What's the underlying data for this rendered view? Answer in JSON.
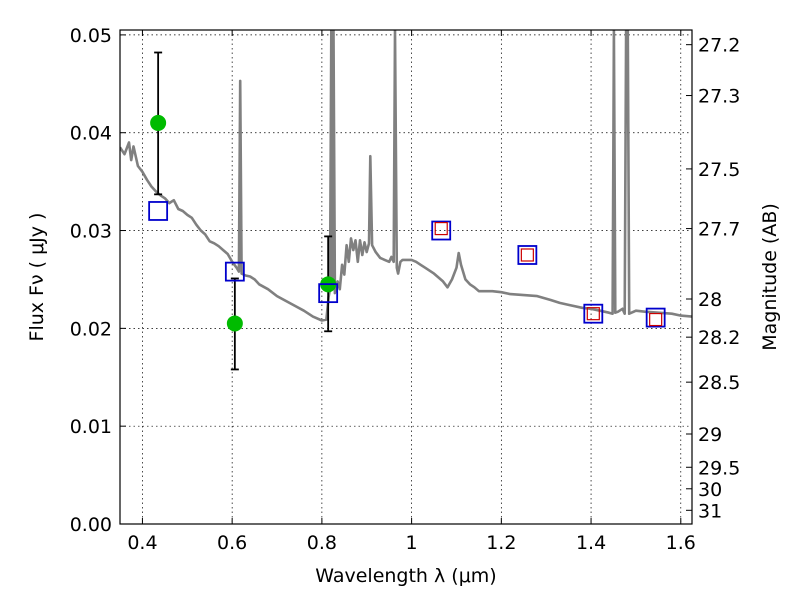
{
  "chart_data": {
    "type": "scatter",
    "xlabel": "Wavelength  λ (μm)",
    "ylabel": "Flux  Fν  ( μJy )",
    "y2label": "Magnitude (AB)",
    "xlim": [
      0.35,
      1.625
    ],
    "ylim": [
      0.0,
      0.0505
    ],
    "x_ticks": [
      0.4,
      0.6,
      0.8,
      1.0,
      1.2,
      1.4,
      1.6
    ],
    "x_tick_labels": [
      "0.4",
      "0.6",
      "0.8",
      "1",
      "1.2",
      "1.4",
      "1.6"
    ],
    "y_ticks": [
      0.0,
      0.01,
      0.02,
      0.03,
      0.04,
      0.05
    ],
    "y_tick_labels": [
      "0.00",
      "0.01",
      "0.02",
      "0.03",
      "0.04",
      "0.05"
    ],
    "y2_ticks": [
      {
        "flux": 0.049,
        "label": "27.2"
      },
      {
        "flux": 0.0438,
        "label": "27.3"
      },
      {
        "flux": 0.0363,
        "label": "27.5"
      },
      {
        "flux": 0.0302,
        "label": "27.7"
      },
      {
        "flux": 0.023,
        "label": "28"
      },
      {
        "flux": 0.0191,
        "label": "28.2"
      },
      {
        "flux": 0.0145,
        "label": "28.5"
      },
      {
        "flux": 0.0092,
        "label": "29"
      },
      {
        "flux": 0.0058,
        "label": "29.5"
      },
      {
        "flux": 0.0036,
        "label": "30"
      },
      {
        "flux": 0.0014,
        "label": "31"
      }
    ],
    "grid": true,
    "colors": {
      "template": "#808080",
      "observed": "#00bb00",
      "model_box": "#0000cc",
      "model_inner": "#cc0000",
      "errorbar": "#000000"
    },
    "series": [
      {
        "kind": "line",
        "points": [
          [
            0.35,
            0.0385
          ],
          [
            0.36,
            0.0378
          ],
          [
            0.37,
            0.039
          ],
          [
            0.375,
            0.0372
          ],
          [
            0.38,
            0.0386
          ],
          [
            0.39,
            0.0366
          ],
          [
            0.4,
            0.036
          ],
          [
            0.41,
            0.0352
          ],
          [
            0.42,
            0.0345
          ],
          [
            0.43,
            0.034
          ],
          [
            0.44,
            0.0336
          ],
          [
            0.45,
            0.0333
          ],
          [
            0.46,
            0.0328
          ],
          [
            0.47,
            0.0331
          ],
          [
            0.48,
            0.0322
          ],
          [
            0.49,
            0.032
          ],
          [
            0.5,
            0.0316
          ],
          [
            0.51,
            0.0313
          ],
          [
            0.52,
            0.0306
          ],
          [
            0.53,
            0.03
          ],
          [
            0.54,
            0.0296
          ],
          [
            0.55,
            0.0289
          ],
          [
            0.56,
            0.0287
          ],
          [
            0.57,
            0.0284
          ],
          [
            0.58,
            0.028
          ],
          [
            0.59,
            0.0276
          ],
          [
            0.6,
            0.0268
          ],
          [
            0.61,
            0.0262
          ],
          [
            0.615,
            0.0258
          ],
          [
            0.618,
            0.0453
          ],
          [
            0.621,
            0.0256
          ],
          [
            0.63,
            0.0254
          ],
          [
            0.64,
            0.0253
          ],
          [
            0.65,
            0.025
          ],
          [
            0.66,
            0.0245
          ],
          [
            0.68,
            0.024
          ],
          [
            0.7,
            0.0233
          ],
          [
            0.72,
            0.0228
          ],
          [
            0.74,
            0.0223
          ],
          [
            0.76,
            0.0218
          ],
          [
            0.78,
            0.0212
          ],
          [
            0.8,
            0.0208
          ],
          [
            0.81,
            0.0209
          ],
          [
            0.815,
            0.0232
          ],
          [
            0.818,
            0.024
          ],
          [
            0.821,
            0.0505
          ],
          [
            0.824,
            0.0242
          ],
          [
            0.826,
            0.0505
          ],
          [
            0.829,
            0.0236
          ],
          [
            0.835,
            0.0248
          ],
          [
            0.84,
            0.024
          ],
          [
            0.845,
            0.0265
          ],
          [
            0.85,
            0.0255
          ],
          [
            0.855,
            0.0285
          ],
          [
            0.86,
            0.0268
          ],
          [
            0.865,
            0.0292
          ],
          [
            0.87,
            0.028
          ],
          [
            0.875,
            0.029
          ],
          [
            0.88,
            0.0268
          ],
          [
            0.885,
            0.029
          ],
          [
            0.89,
            0.0275
          ],
          [
            0.895,
            0.0288
          ],
          [
            0.9,
            0.0278
          ],
          [
            0.905,
            0.0287
          ],
          [
            0.908,
            0.0376
          ],
          [
            0.912,
            0.0285
          ],
          [
            0.92,
            0.0278
          ],
          [
            0.93,
            0.0272
          ],
          [
            0.94,
            0.027
          ],
          [
            0.95,
            0.0268
          ],
          [
            0.955,
            0.0273
          ],
          [
            0.96,
            0.0268
          ],
          [
            0.963,
            0.0505
          ],
          [
            0.967,
            0.0262
          ],
          [
            0.97,
            0.0256
          ],
          [
            0.975,
            0.0268
          ],
          [
            0.98,
            0.027
          ],
          [
            1.0,
            0.027
          ],
          [
            1.01,
            0.0268
          ],
          [
            1.02,
            0.0265
          ],
          [
            1.03,
            0.0262
          ],
          [
            1.05,
            0.0256
          ],
          [
            1.07,
            0.0248
          ],
          [
            1.08,
            0.0242
          ],
          [
            1.09,
            0.025
          ],
          [
            1.1,
            0.0262
          ],
          [
            1.105,
            0.0277
          ],
          [
            1.11,
            0.0265
          ],
          [
            1.12,
            0.025
          ],
          [
            1.13,
            0.0245
          ],
          [
            1.14,
            0.0242
          ],
          [
            1.15,
            0.0238
          ],
          [
            1.18,
            0.0238
          ],
          [
            1.2,
            0.0237
          ],
          [
            1.22,
            0.0235
          ],
          [
            1.25,
            0.0234
          ],
          [
            1.28,
            0.0233
          ],
          [
            1.31,
            0.0229
          ],
          [
            1.33,
            0.0226
          ],
          [
            1.35,
            0.0224
          ],
          [
            1.38,
            0.0221
          ],
          [
            1.4,
            0.022
          ],
          [
            1.42,
            0.0218
          ],
          [
            1.44,
            0.0216
          ],
          [
            1.448,
            0.0215
          ],
          [
            1.451,
            0.0505
          ],
          [
            1.454,
            0.0216
          ],
          [
            1.46,
            0.0217
          ],
          [
            1.47,
            0.022
          ],
          [
            1.475,
            0.0215
          ],
          [
            1.478,
            0.0505
          ],
          [
            1.482,
            0.0505
          ],
          [
            1.485,
            0.0215
          ],
          [
            1.5,
            0.0218
          ],
          [
            1.52,
            0.0217
          ],
          [
            1.55,
            0.0216
          ],
          [
            1.58,
            0.0215
          ],
          [
            1.6,
            0.0213
          ],
          [
            1.625,
            0.0212
          ]
        ]
      },
      {
        "kind": "observed",
        "points": [
          {
            "x": 0.435,
            "y": 0.041,
            "yerr_low": 0.0337,
            "yerr_high": 0.0482
          },
          {
            "x": 0.606,
            "y": 0.0205,
            "yerr_low": 0.0158,
            "yerr_high": 0.0251
          },
          {
            "x": 0.814,
            "y": 0.0245,
            "yerr_low": 0.0197,
            "yerr_high": 0.0294
          }
        ]
      },
      {
        "kind": "model_box",
        "points": [
          {
            "x": 0.435,
            "y": 0.032
          },
          {
            "x": 0.606,
            "y": 0.0258
          },
          {
            "x": 0.814,
            "y": 0.0236
          },
          {
            "x": 1.066,
            "y": 0.03
          },
          {
            "x": 1.258,
            "y": 0.0275
          },
          {
            "x": 1.405,
            "y": 0.0215
          },
          {
            "x": 1.544,
            "y": 0.0211
          }
        ]
      },
      {
        "kind": "model_inner",
        "points": [
          {
            "x": 1.066,
            "y": 0.0302
          },
          {
            "x": 1.258,
            "y": 0.0275
          },
          {
            "x": 1.405,
            "y": 0.0215
          },
          {
            "x": 1.544,
            "y": 0.0209
          }
        ]
      }
    ]
  }
}
